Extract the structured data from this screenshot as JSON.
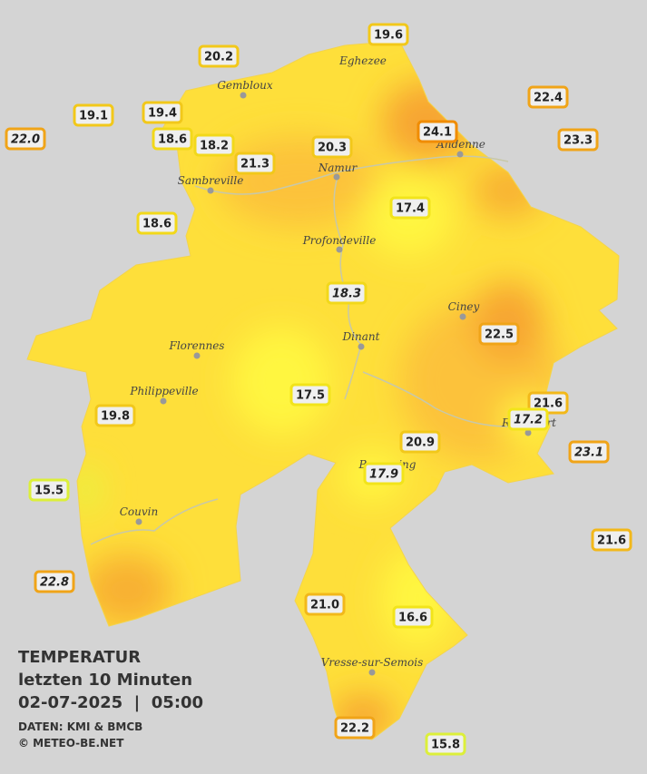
{
  "title": {
    "heading": "TEMPERATUR",
    "subtitle": "letzten 10 Minuten",
    "timestamp": "02-07-2025  |  05:00",
    "source": "DATEN: KMI & BMCB",
    "credit": "© METEO-BE.NET"
  },
  "towns": [
    {
      "label": "Eghezee"
    },
    {
      "label": "Gembloux"
    },
    {
      "label": "Andenne"
    },
    {
      "label": "Namur"
    },
    {
      "label": "Sambreville"
    },
    {
      "label": "Profondeville"
    },
    {
      "label": "Ciney"
    },
    {
      "label": "Dinant"
    },
    {
      "label": "Florennes"
    },
    {
      "label": "Philippeville"
    },
    {
      "label": "Rochefort"
    },
    {
      "label": "Beauraing"
    },
    {
      "label": "Couvin"
    },
    {
      "label": "Vresse-sur-Semois"
    }
  ],
  "stations": [
    {
      "value": "19.6",
      "italic": false,
      "color": "#f2c81a"
    },
    {
      "value": "20.2",
      "italic": false,
      "color": "#f2c81a"
    },
    {
      "value": "22.4",
      "italic": false,
      "color": "#f0a418"
    },
    {
      "value": "19.1",
      "italic": false,
      "color": "#f2c81a"
    },
    {
      "value": "19.4",
      "italic": false,
      "color": "#f2c81a"
    },
    {
      "value": "24.1",
      "italic": false,
      "color": "#f08c00"
    },
    {
      "value": "23.3",
      "italic": false,
      "color": "#f0a418"
    },
    {
      "value": "22.0",
      "italic": true,
      "color": "#f0a418"
    },
    {
      "value": "18.6",
      "italic": false,
      "color": "#f2d81a"
    },
    {
      "value": "18.2",
      "italic": false,
      "color": "#f2d81a"
    },
    {
      "value": "20.3",
      "italic": false,
      "color": "#f2c81a"
    },
    {
      "value": "21.3",
      "italic": false,
      "color": "#f2c81a"
    },
    {
      "value": "17.4",
      "italic": false,
      "color": "#f2e41a"
    },
    {
      "value": "18.6",
      "italic": false,
      "color": "#f2d81a"
    },
    {
      "value": "18.3",
      "italic": true,
      "color": "#f2d81a"
    },
    {
      "value": "22.5",
      "italic": false,
      "color": "#f0a418"
    },
    {
      "value": "17.5",
      "italic": false,
      "color": "#f2e41a"
    },
    {
      "value": "21.6",
      "italic": false,
      "color": "#f2b81a"
    },
    {
      "value": "19.8",
      "italic": false,
      "color": "#f2c81a"
    },
    {
      "value": "17.2",
      "italic": true,
      "color": "#f2e41a"
    },
    {
      "value": "20.9",
      "italic": false,
      "color": "#f2c81a"
    },
    {
      "value": "23.1",
      "italic": true,
      "color": "#f0a418"
    },
    {
      "value": "17.9",
      "italic": true,
      "color": "#f2e41a"
    },
    {
      "value": "15.5",
      "italic": false,
      "color": "#dcef3a"
    },
    {
      "value": "21.6",
      "italic": false,
      "color": "#f2b81a"
    },
    {
      "value": "22.8",
      "italic": true,
      "color": "#f0a418"
    },
    {
      "value": "21.0",
      "italic": false,
      "color": "#f2b81a"
    },
    {
      "value": "16.6",
      "italic": false,
      "color": "#f2e41a"
    },
    {
      "value": "22.2",
      "italic": false,
      "color": "#f0a418"
    },
    {
      "value": "15.8",
      "italic": false,
      "color": "#dcef3a"
    }
  ]
}
